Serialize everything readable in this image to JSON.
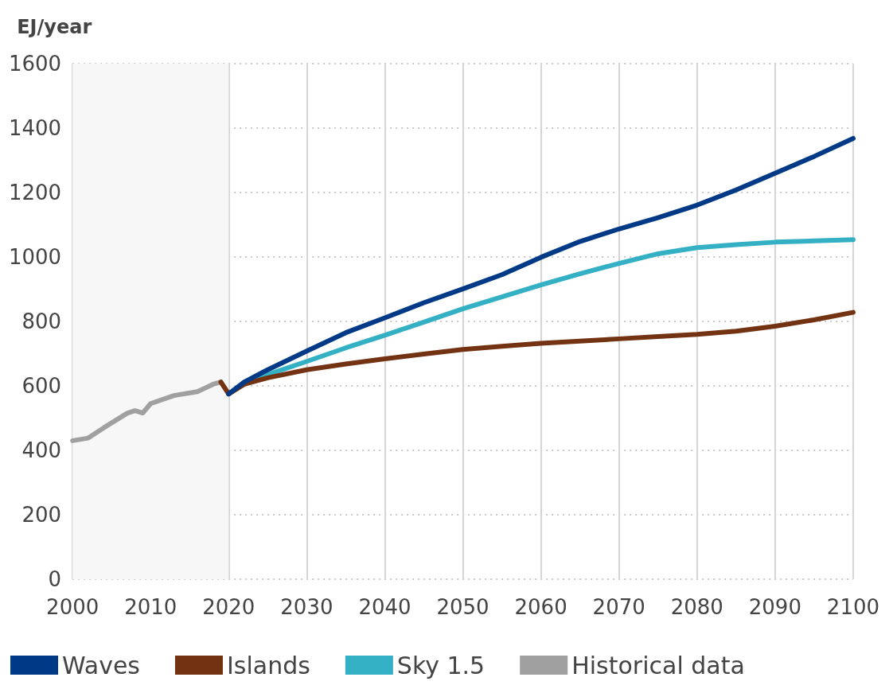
{
  "chart_data": {
    "type": "line",
    "ylabel": "EJ/year",
    "xlim": [
      2000,
      2100
    ],
    "xticks": [
      2000,
      2010,
      2020,
      2030,
      2040,
      2050,
      2060,
      2070,
      2080,
      2090,
      2100
    ],
    "ylim": [
      0,
      1600
    ],
    "yticks": [
      0,
      200,
      400,
      600,
      800,
      1000,
      1200,
      1400,
      1600
    ],
    "grid": true,
    "legend": "bottom left",
    "marker": "none",
    "line_style": "solid",
    "bands": [
      {
        "axis": "x",
        "from": 2000,
        "to": 2020,
        "color": "#f7f7f7"
      }
    ],
    "series": [
      {
        "name": "Waves",
        "color": "#003a87",
        "x": [
          2020,
          2022,
          2025,
          2030,
          2035,
          2040,
          2045,
          2050,
          2055,
          2060,
          2065,
          2070,
          2075,
          2080,
          2085,
          2090,
          2095,
          2100
        ],
        "values": [
          575,
          612,
          650,
          708,
          765,
          811,
          858,
          901,
          945,
          999,
          1048,
          1087,
          1122,
          1161,
          1208,
          1260,
          1312,
          1368
        ]
      },
      {
        "name": "Islands",
        "color": "#733212",
        "x": [
          2019,
          2020,
          2022,
          2025,
          2030,
          2035,
          2040,
          2045,
          2050,
          2055,
          2060,
          2065,
          2070,
          2075,
          2080,
          2085,
          2090,
          2095,
          2100
        ],
        "values": [
          612,
          575,
          605,
          625,
          650,
          668,
          684,
          699,
          713,
          723,
          732,
          739,
          746,
          753,
          760,
          770,
          785,
          805,
          828
        ]
      },
      {
        "name": "Sky 1.5",
        "color": "#33b0c4",
        "x": [
          2020,
          2022,
          2025,
          2030,
          2035,
          2040,
          2045,
          2050,
          2055,
          2060,
          2065,
          2070,
          2075,
          2080,
          2085,
          2090,
          2095,
          2100
        ],
        "values": [
          575,
          610,
          635,
          676,
          718,
          757,
          798,
          839,
          876,
          913,
          948,
          980,
          1010,
          1029,
          1038,
          1046,
          1050,
          1054
        ]
      },
      {
        "name": "Historical data",
        "color": "#a0a0a0",
        "x": [
          2000,
          2002,
          2004,
          2007,
          2008,
          2009,
          2010,
          2013,
          2016,
          2018,
          2019
        ],
        "values": [
          430,
          438,
          470,
          515,
          523,
          516,
          545,
          570,
          582,
          605,
          612
        ]
      }
    ]
  }
}
